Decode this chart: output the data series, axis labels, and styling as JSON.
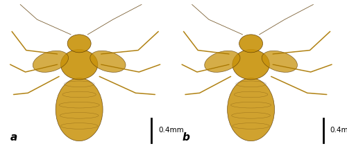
{
  "figsize": [
    5.0,
    2.21
  ],
  "dpi": 100,
  "background_color": "#ffffff",
  "panels": [
    "a",
    "b"
  ],
  "label_fontsize": 11,
  "label_color": "#000000",
  "scale_bar_text": "0.4mm",
  "scale_bar_fontsize": 7.5,
  "scale_bar_color": "#000000",
  "panel_bg_color": "#e8d9b0",
  "insect_body_color": "#c8920a",
  "insect_dark": "#5a3800",
  "outer_border_color": "#000000",
  "image_bg": "#f0ece0"
}
